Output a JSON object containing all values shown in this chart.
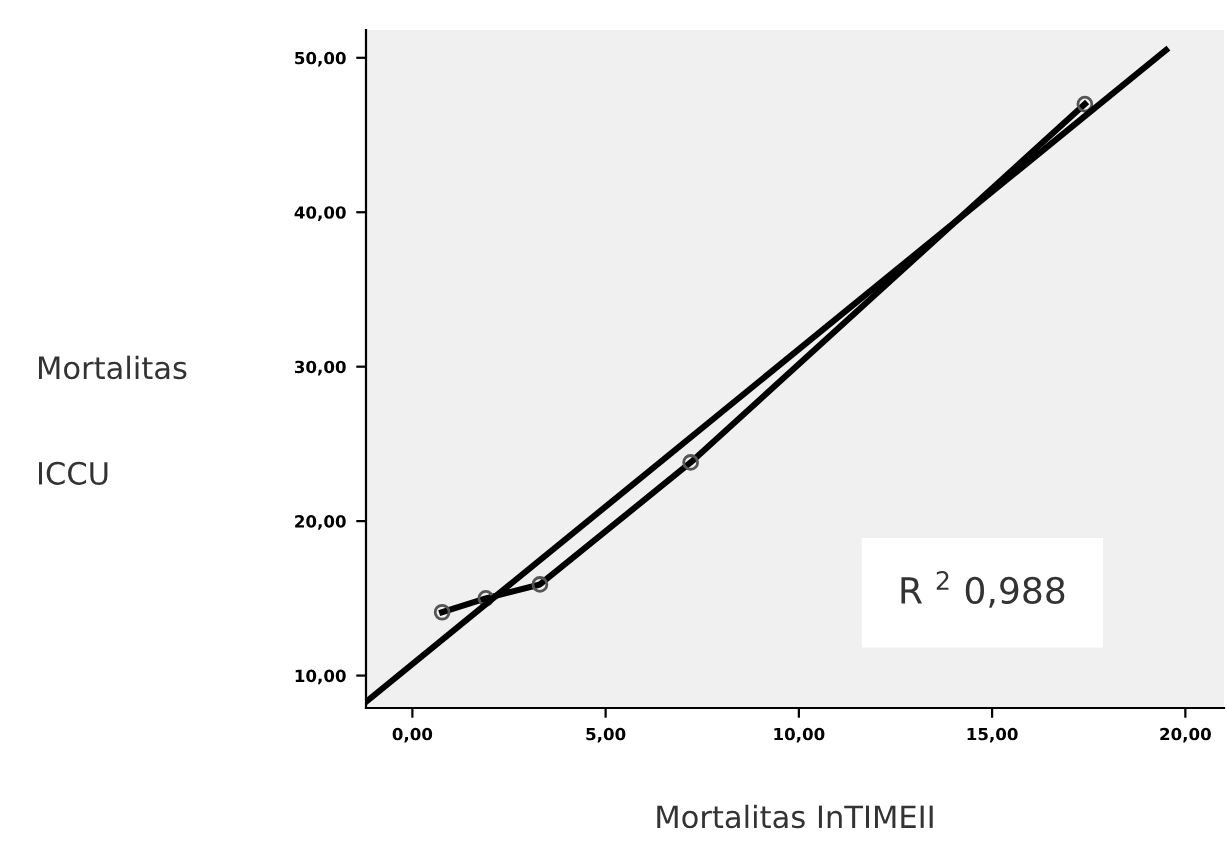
{
  "chart_data": {
    "type": "line",
    "xlabel": "Mortalitas InTIMEII",
    "ylabel": "Mortalitas\n\nICCU",
    "xlim": [
      -1.2,
      21
    ],
    "ylim": [
      7.9,
      51.8
    ],
    "xticks": [
      {
        "value": 0,
        "label": "0,00"
      },
      {
        "value": 5,
        "label": "5,00"
      },
      {
        "value": 10,
        "label": "10,00"
      },
      {
        "value": 15,
        "label": "15,00"
      },
      {
        "value": 20,
        "label": "20,00"
      }
    ],
    "yticks": [
      {
        "value": 10,
        "label": "10,00"
      },
      {
        "value": 20,
        "label": "20,00"
      },
      {
        "value": 30,
        "label": "30,00"
      },
      {
        "value": 40,
        "label": "40,00"
      },
      {
        "value": 50,
        "label": "50,00"
      }
    ],
    "series": [
      {
        "color": "#000000",
        "marker": "circle",
        "x": [
          0.77,
          1.9,
          3.3,
          7.2,
          17.4
        ],
        "values": [
          14.1,
          15.0,
          15.9,
          23.8,
          47.0
        ]
      },
      {
        "type": "line",
        "color": "#000000",
        "marker": "none",
        "x": [
          -1.2,
          19.5
        ],
        "values": [
          8.3,
          50.5
        ]
      }
    ],
    "annotations": [
      "R $^{2}$ 0,988"
    ],
    "grid": false,
    "legend": false
  }
}
